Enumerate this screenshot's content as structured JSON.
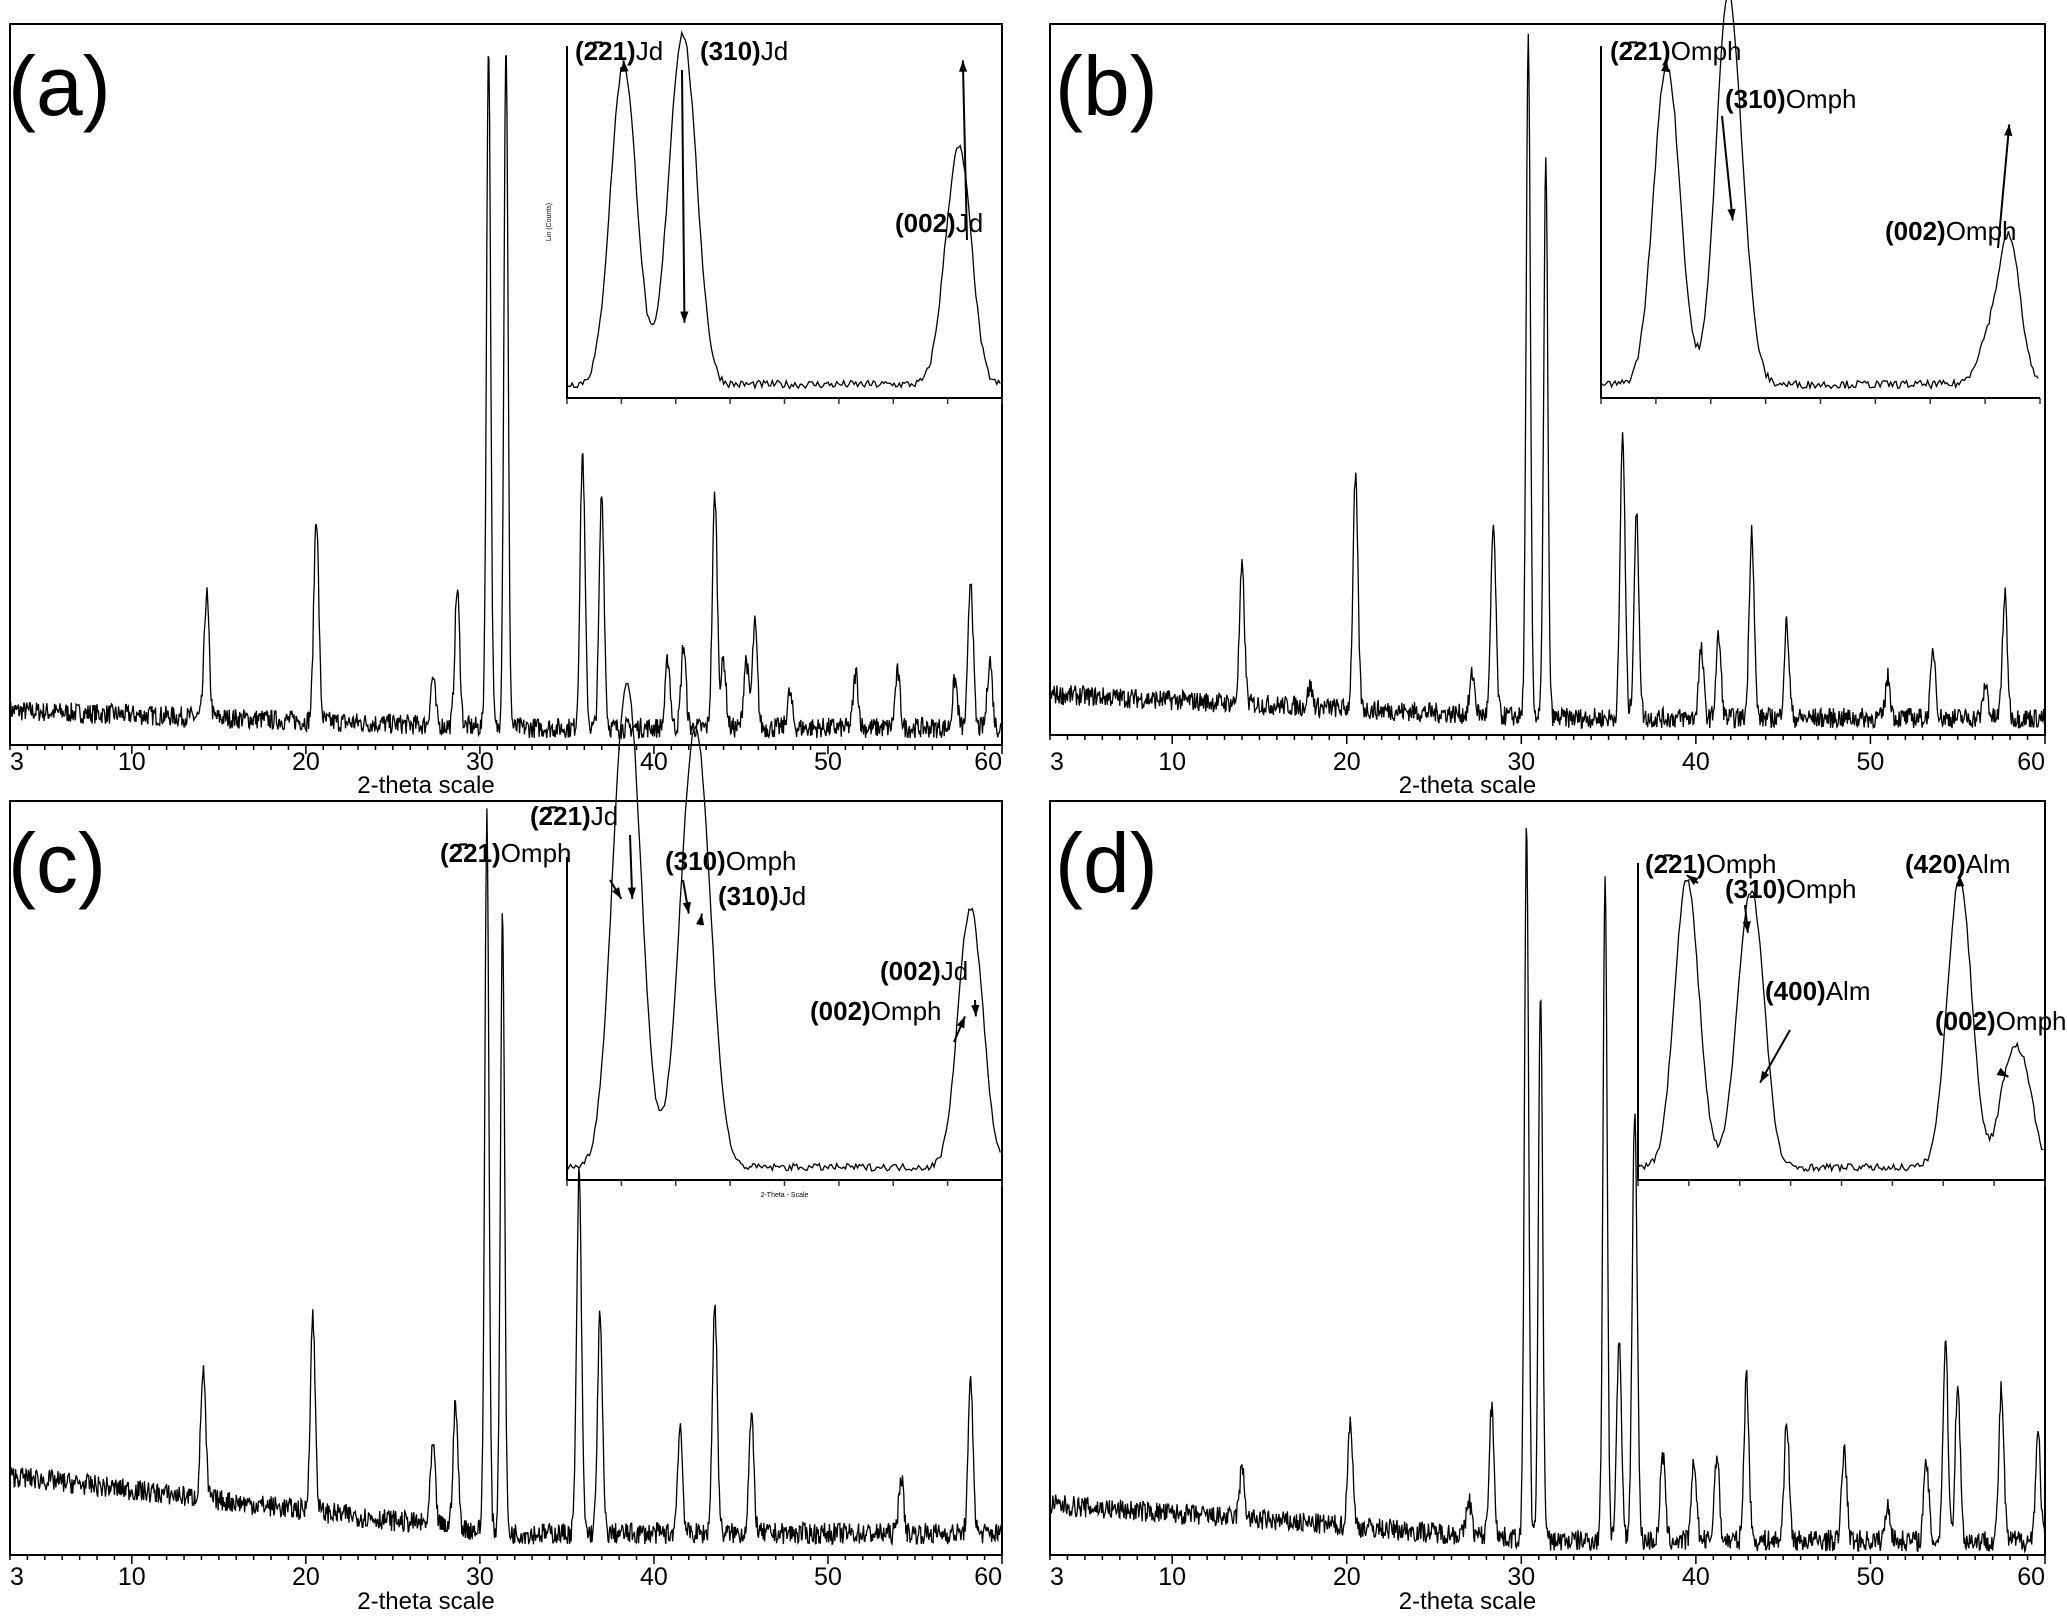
{
  "chart_data": [
    {
      "type": "line",
      "panel": "(a)",
      "xlabel": "2-theta scale",
      "xlim": [
        3,
        60
      ],
      "ylim": [
        0,
        105
      ],
      "xticks": [
        3,
        10,
        20,
        30,
        40,
        50,
        60
      ],
      "baseline": [
        5,
        2.5
      ],
      "peaks": [
        [
          14.3,
          18
        ],
        [
          20.6,
          30
        ],
        [
          27.3,
          7
        ],
        [
          28.7,
          20
        ],
        [
          30.5,
          100
        ],
        [
          31.5,
          100
        ],
        [
          35.9,
          40
        ],
        [
          37.0,
          34
        ],
        [
          40.8,
          10
        ],
        [
          41.7,
          12
        ],
        [
          43.5,
          34
        ],
        [
          44.0,
          10
        ],
        [
          45.3,
          10
        ],
        [
          45.8,
          15
        ],
        [
          47.8,
          5
        ],
        [
          51.6,
          8
        ],
        [
          54.0,
          8
        ],
        [
          57.3,
          7
        ],
        [
          58.2,
          22
        ],
        [
          59.3,
          10
        ]
      ],
      "inset": {
        "ylabel": "Lin (Counts)",
        "peaks": [
          [
            13,
            100
          ],
          [
            24,
            18
          ],
          [
            27,
            100
          ],
          [
            88,
            32
          ],
          [
            91,
            55
          ]
        ],
        "annotations": [
          {
            "hkl": "(2̄21)",
            "phase": "Jd",
            "x": 13
          },
          {
            "hkl": "(310)",
            "phase": "Jd",
            "x": 27
          },
          {
            "hkl": "(002)",
            "phase": "Jd",
            "x": 91
          }
        ]
      }
    },
    {
      "type": "line",
      "panel": "(b)",
      "xlabel": "2-theta scale",
      "xlim": [
        3,
        60
      ],
      "ylim": [
        0,
        105
      ],
      "xticks": [
        3,
        10,
        20,
        30,
        40,
        50,
        60
      ],
      "baseline": [
        6,
        2.5
      ],
      "peaks": [
        [
          14.0,
          20
        ],
        [
          17.9,
          3
        ],
        [
          20.5,
          34
        ],
        [
          27.2,
          6
        ],
        [
          28.4,
          28
        ],
        [
          30.4,
          100
        ],
        [
          31.4,
          82
        ],
        [
          35.8,
          42
        ],
        [
          36.6,
          30
        ],
        [
          40.3,
          10
        ],
        [
          41.3,
          12
        ],
        [
          43.2,
          28
        ],
        [
          45.2,
          14
        ],
        [
          51.0,
          6
        ],
        [
          53.6,
          10
        ],
        [
          56.6,
          5
        ],
        [
          57.7,
          18
        ]
      ],
      "inset": {
        "peaks": [
          [
            15,
            100
          ],
          [
            28,
            50
          ],
          [
            30,
            80
          ],
          [
            88,
            12
          ],
          [
            93,
            45
          ]
        ],
        "annotations": [
          {
            "hkl": "(2̄21)",
            "phase": "Omph",
            "x": 15
          },
          {
            "hkl": "(310)",
            "phase": "Omph",
            "x": 30
          },
          {
            "hkl": "(002)",
            "phase": "Omph",
            "x": 93
          }
        ]
      }
    },
    {
      "type": "line",
      "panel": "(c)",
      "xlabel": "2-theta scale",
      "xlim": [
        3,
        60
      ],
      "ylim": [
        0,
        105
      ],
      "xticks": [
        3,
        10,
        20,
        30,
        40,
        50,
        60
      ],
      "baseline": [
        11,
        3
      ],
      "peaks": [
        [
          14.1,
          18
        ],
        [
          20.4,
          27
        ],
        [
          27.3,
          11
        ],
        [
          28.6,
          17
        ],
        [
          30.4,
          100
        ],
        [
          31.3,
          86
        ],
        [
          35.7,
          50
        ],
        [
          36.9,
          30
        ],
        [
          41.5,
          15
        ],
        [
          43.5,
          32
        ],
        [
          45.6,
          16
        ],
        [
          54.2,
          8
        ],
        [
          58.2,
          21
        ]
      ],
      "inset": {
        "xlabel": "2-Theta - Scale",
        "peaks": [
          [
            12.5,
            90
          ],
          [
            15,
            90
          ],
          [
            28,
            85
          ],
          [
            31,
            85
          ],
          [
            91.5,
            50
          ],
          [
            94,
            50
          ]
        ],
        "annotations": [
          {
            "hkl": "(2̄21)",
            "phase": "Omph",
            "x": 12.5
          },
          {
            "hkl": "(2̄21)",
            "phase": "Jd",
            "x": 15
          },
          {
            "hkl": "(310)",
            "phase": "Omph",
            "x": 28
          },
          {
            "hkl": "(310)",
            "phase": "Jd",
            "x": 31
          },
          {
            "hkl": "(002)",
            "phase": "Omph",
            "x": 91.5
          },
          {
            "hkl": "(002)",
            "phase": "Jd",
            "x": 94
          }
        ]
      }
    },
    {
      "type": "line",
      "panel": "(d)",
      "xlabel": "2-theta scale",
      "xlim": [
        3,
        60
      ],
      "ylim": [
        0,
        105
      ],
      "xticks": [
        3,
        10,
        20,
        30,
        40,
        50,
        60
      ],
      "baseline": [
        7,
        2
      ],
      "peaks": [
        [
          14.0,
          7
        ],
        [
          20.2,
          15
        ],
        [
          27.0,
          5
        ],
        [
          28.3,
          18
        ],
        [
          30.3,
          100
        ],
        [
          31.1,
          77
        ],
        [
          34.8,
          93
        ],
        [
          35.6,
          27
        ],
        [
          36.5,
          60
        ],
        [
          38.1,
          12
        ],
        [
          39.9,
          11
        ],
        [
          41.2,
          12
        ],
        [
          42.9,
          23
        ],
        [
          45.2,
          17
        ],
        [
          48.5,
          13
        ],
        [
          51.0,
          5
        ],
        [
          53.2,
          11
        ],
        [
          54.3,
          28
        ],
        [
          55.0,
          22
        ],
        [
          57.5,
          21
        ],
        [
          59.6,
          15
        ]
      ],
      "inset": {
        "peaks": [
          [
            12,
            100
          ],
          [
            27,
            80
          ],
          [
            30,
            28
          ],
          [
            79,
            100
          ],
          [
            91,
            30
          ],
          [
            95,
            28
          ]
        ],
        "annotations": [
          {
            "hkl": "(2̄21)",
            "phase": "Omph",
            "x": 12
          },
          {
            "hkl": "(310)",
            "phase": "Omph",
            "x": 27
          },
          {
            "hkl": "(400)",
            "phase": "Alm",
            "x": 30
          },
          {
            "hkl": "(420)",
            "phase": "Alm",
            "x": 79
          },
          {
            "hkl": "(002)",
            "phase": "Omph",
            "x": 91
          }
        ]
      }
    }
  ]
}
